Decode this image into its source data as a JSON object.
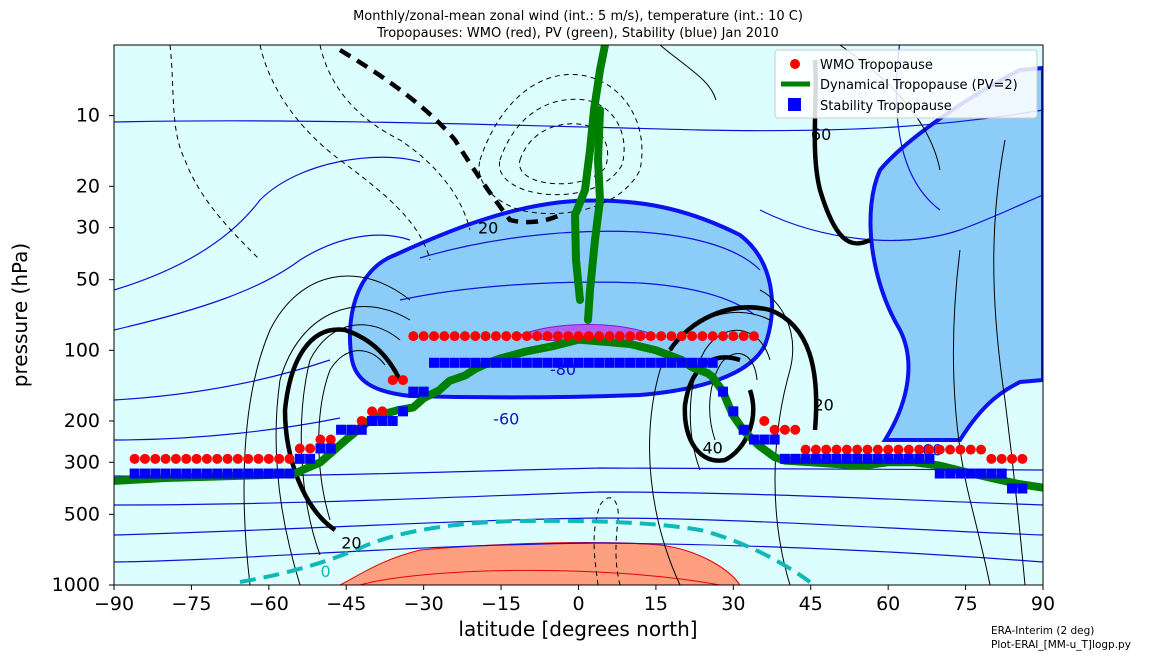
{
  "chart_data": {
    "type": "contour",
    "title": "Monthly/zonal-mean zonal wind (int.: 5 m/s), temperature (int.: 10 C)",
    "subtitle": "Tropopauses: WMO (red), PV (green), Stability (blue) Jan 2010",
    "xlabel": "latitude [degrees north]",
    "ylabel": "pressure (hPa)",
    "xlim": [
      -90,
      90
    ],
    "ylim": [
      1000,
      5
    ],
    "y_scale": "log",
    "x_ticks": [
      -90,
      -75,
      -60,
      -45,
      -30,
      -15,
      0,
      15,
      30,
      45,
      60,
      75,
      90
    ],
    "x_tick_labels": [
      "−90",
      "−75",
      "−60",
      "−45",
      "−30",
      "−15",
      "0",
      "15",
      "30",
      "45",
      "60",
      "75",
      "90"
    ],
    "y_ticks": [
      10,
      20,
      30,
      50,
      100,
      200,
      300,
      500,
      1000
    ],
    "y_tick_labels": [
      "10",
      "20",
      "30",
      "50",
      "100",
      "200",
      "300",
      "500",
      "1000"
    ],
    "contour_labels": [
      {
        "text": "20",
        "lat": -17.5,
        "p": 30,
        "color": "#000000"
      },
      {
        "text": "-80",
        "lat": -3,
        "p": 120,
        "color": "#1010c8"
      },
      {
        "text": "-60",
        "lat": -14,
        "p": 195,
        "color": "#1010c8"
      },
      {
        "text": "20",
        "lat": 47.5,
        "p": 170,
        "color": "#000000"
      },
      {
        "text": "40",
        "lat": 26,
        "p": 260,
        "color": "#000000"
      },
      {
        "text": "-60",
        "lat": 68,
        "p": 265,
        "color": "#1010c8"
      },
      {
        "text": "60",
        "lat": 47,
        "p": 12,
        "color": "#000000"
      },
      {
        "text": "20",
        "lat": -44,
        "p": 660,
        "color": "#000000"
      },
      {
        "text": "0",
        "lat": -49,
        "p": 870,
        "color": "#10b8b8"
      }
    ],
    "series": [
      {
        "name": "WMO Tropopause",
        "color": "#ff0000",
        "x": [
          -86,
          -84,
          -82,
          -80,
          -78,
          -76,
          -74,
          -72,
          -70,
          -68,
          -66,
          -64,
          -62,
          -60,
          -58,
          -56,
          -54,
          -52,
          -50,
          -48,
          -46,
          -44,
          -42,
          -40,
          -38,
          -36,
          -34,
          -32,
          -30,
          -28,
          -26,
          -24,
          -22,
          -20,
          -18,
          -16,
          -14,
          -12,
          -10,
          -8,
          -6,
          -4,
          -2,
          0,
          2,
          4,
          6,
          8,
          10,
          12,
          14,
          16,
          18,
          20,
          22,
          24,
          26,
          28,
          30,
          32,
          34,
          36,
          38,
          40,
          42,
          44,
          46,
          48,
          50,
          52,
          54,
          56,
          58,
          60,
          62,
          64,
          66,
          68,
          70,
          72,
          74,
          76,
          78,
          80,
          82,
          84,
          86
        ],
        "y": [
          290,
          290,
          290,
          290,
          290,
          290,
          290,
          290,
          290,
          290,
          290,
          290,
          290,
          290,
          290,
          290,
          262,
          262,
          240,
          240,
          218,
          218,
          200,
          182,
          182,
          134,
          134,
          87,
          87,
          87,
          87,
          87,
          87,
          87,
          87,
          87,
          87,
          87,
          87,
          87,
          87,
          87,
          87,
          87,
          87,
          87,
          87,
          87,
          87,
          87,
          87,
          87,
          87,
          87,
          87,
          87,
          87,
          87,
          87,
          87,
          87,
          200,
          218,
          218,
          218,
          265,
          265,
          265,
          265,
          265,
          265,
          265,
          265,
          265,
          265,
          265,
          265,
          265,
          265,
          265,
          265,
          265,
          265,
          290,
          290,
          290,
          290
        ]
      },
      {
        "name": "Dynamical Tropopause (PV=2)",
        "color": "#008000",
        "x": [
          -90,
          -80,
          -70,
          -60,
          -55,
          -50,
          -45,
          -40,
          -37,
          -35,
          -32,
          -30,
          -27,
          -25,
          -22,
          -20,
          -17,
          -15,
          -10,
          -5,
          0,
          5,
          10,
          15,
          20,
          22,
          25,
          26,
          27,
          28,
          29,
          30,
          32,
          35,
          38,
          40,
          45,
          50,
          55,
          60,
          65,
          70,
          75,
          80,
          85,
          90
        ],
        "y": [
          360,
          350,
          345,
          340,
          335,
          300,
          240,
          195,
          185,
          180,
          175,
          160,
          148,
          135,
          128,
          120,
          112,
          108,
          101,
          96,
          90,
          92,
          94,
          100,
          110,
          118,
          125,
          130,
          140,
          150,
          170,
          190,
          220,
          255,
          285,
          295,
          300,
          305,
          310,
          300,
          300,
          310,
          330,
          350,
          370,
          385
        ]
      },
      {
        "name": "Stability Tropopause",
        "color": "#0000ff",
        "x": [
          -86,
          -84,
          -82,
          -80,
          -78,
          -76,
          -74,
          -72,
          -70,
          -68,
          -66,
          -64,
          -62,
          -60,
          -58,
          -56,
          -54,
          -52,
          -50,
          -48,
          -46,
          -44,
          -42,
          -40,
          -38,
          -36,
          -34,
          -32,
          -30,
          -28,
          -26,
          -24,
          -22,
          -20,
          -18,
          -16,
          -14,
          -12,
          -10,
          -8,
          -6,
          -4,
          -2,
          0,
          2,
          4,
          6,
          8,
          10,
          12,
          14,
          16,
          18,
          20,
          22,
          24,
          26,
          28,
          30,
          32,
          34,
          36,
          38,
          40,
          42,
          44,
          46,
          48,
          50,
          52,
          54,
          56,
          58,
          60,
          62,
          64,
          66,
          68,
          70,
          72,
          74,
          76,
          78,
          80,
          82,
          84,
          86
        ],
        "y": [
          335,
          335,
          335,
          335,
          335,
          335,
          335,
          335,
          335,
          335,
          335,
          335,
          335,
          335,
          335,
          335,
          290,
          290,
          262,
          262,
          218,
          218,
          218,
          200,
          200,
          200,
          182,
          150,
          150,
          113,
          113,
          113,
          113,
          113,
          113,
          113,
          113,
          113,
          113,
          113,
          113,
          113,
          113,
          113,
          113,
          113,
          113,
          113,
          113,
          113,
          113,
          113,
          113,
          113,
          113,
          113,
          113,
          150,
          182,
          218,
          240,
          240,
          240,
          290,
          290,
          290,
          290,
          290,
          290,
          290,
          290,
          290,
          290,
          290,
          290,
          290,
          290,
          290,
          335,
          335,
          335,
          335,
          335,
          335,
          335,
          388,
          388
        ]
      }
    ],
    "legend": {
      "position": "top-right"
    },
    "grid": false
  },
  "credit": {
    "line1": "ERA-Interim (2 deg)",
    "line2": "Plot-ERAI_[MM-u_T]logp.py"
  }
}
